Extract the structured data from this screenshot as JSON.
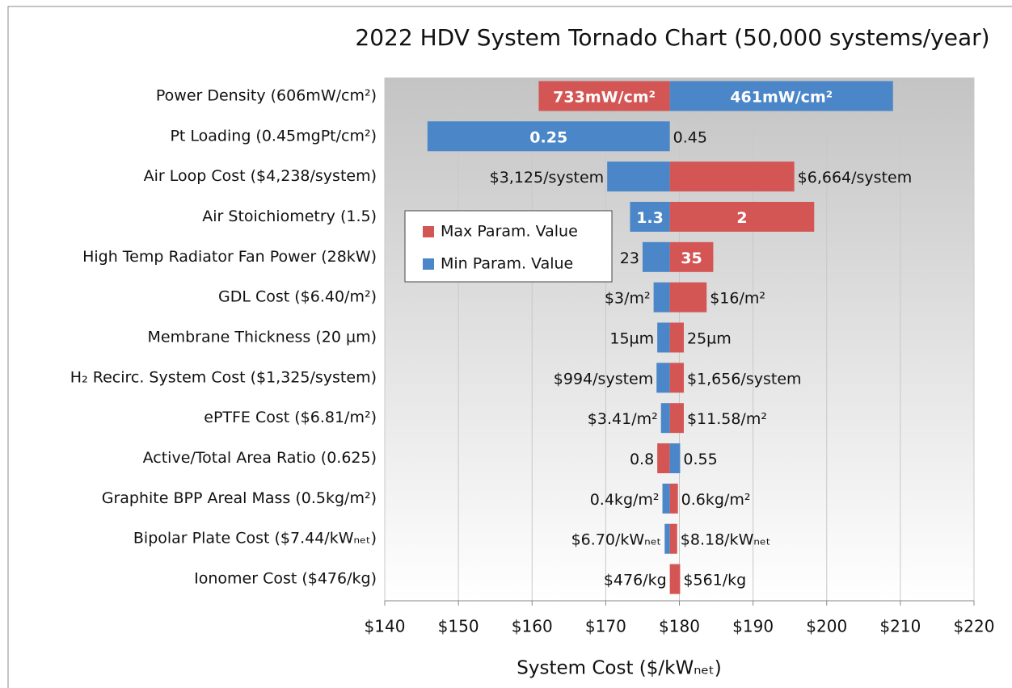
{
  "chart_data": {
    "type": "tornado",
    "title": "2022 HDV System Tornado Chart (50,000 systems/year)",
    "x_label": "System Cost ($/kWₙₑₜ)",
    "base_value": 178.7,
    "categories": [
      "Power Density (606mW/cm²)",
      "Pt Loading (0.45mgPt/cm²)",
      "Air Loop Cost ($4,238/system)",
      "Air Stoichiometry (1.5)",
      "High Temp Radiator Fan Power (28kW)",
      "GDL Cost ($6.40/m²)",
      "Membrane Thickness (20 µm)",
      "H₂ Recirc. System Cost ($1,325/system)",
      "ePTFE Cost ($6.81/m²)",
      "Active/Total Area Ratio (0.625)",
      "Graphite BPP Areal Mass (0.5kg/m²)",
      "Bipolar Plate Cost ($7.44/kWₙₑₜ)",
      "Ionomer Cost ($476/kg)"
    ],
    "series": [
      {
        "name": "Max Param. Value",
        "color": "#d35655",
        "values": [
          160.9,
          178.7,
          195.6,
          198.3,
          184.6,
          183.7,
          180.6,
          180.6,
          180.6,
          177.0,
          179.8,
          179.7,
          180.1
        ],
        "value_labels": [
          "733mW/cm²",
          "0.45",
          "$6,664/system",
          "2",
          "35",
          "$16/m²",
          "25µm",
          "$1,656/system",
          "$11.58/m²",
          "0.8",
          "0.6kg/m²",
          "$8.18/kWₙₑₜ",
          "$561/kg"
        ]
      },
      {
        "name": "Min Param. Value",
        "color": "#4a86c8",
        "values": [
          209.0,
          145.8,
          170.2,
          173.3,
          175.0,
          176.5,
          177.0,
          176.9,
          177.5,
          180.1,
          177.7,
          178.0,
          178.7
        ],
        "value_labels": [
          "461mW/cm²",
          "0.25",
          "$3,125/system",
          "1.3",
          "23",
          "$3/m²",
          "15µm",
          "$994/system",
          "$3.41/m²",
          "0.55",
          "0.4kg/m²",
          "$6.70/kWₙₑₜ",
          "$476/kg"
        ]
      }
    ],
    "xlim": [
      140,
      220
    ],
    "xticks": [
      {
        "value": 140,
        "label": "$140"
      },
      {
        "value": 150,
        "label": "$150"
      },
      {
        "value": 160,
        "label": "$160"
      },
      {
        "value": 170,
        "label": "$170"
      },
      {
        "value": 180,
        "label": "$180"
      },
      {
        "value": 190,
        "label": "$190"
      },
      {
        "value": 200,
        "label": "$200"
      },
      {
        "value": 210,
        "label": "$210"
      },
      {
        "value": 220,
        "label": "$220"
      }
    ],
    "grid": true
  }
}
